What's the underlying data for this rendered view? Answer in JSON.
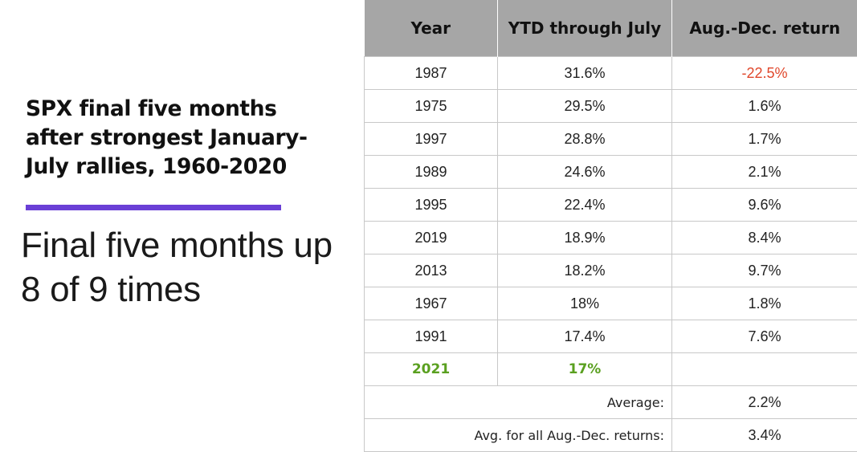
{
  "title": "SPX final five months after strongest January-July rallies, 1960-2020",
  "headline": "Final five months up 8 of 9 times",
  "colors": {
    "accent_bar": "#6a3fd6",
    "header_bg": "#a6a6a6",
    "negative": "#e0472b",
    "highlight": "#5aa020",
    "grid": "#c8c8c8"
  },
  "chart_data": {
    "type": "table",
    "columns": [
      "Year",
      "YTD through July",
      "Aug.-Dec. return"
    ],
    "rows": [
      {
        "year": "1987",
        "ytd": "31.6%",
        "aug_dec": "-22.5%",
        "negative": true
      },
      {
        "year": "1975",
        "ytd": "29.5%",
        "aug_dec": "1.6%"
      },
      {
        "year": "1997",
        "ytd": "28.8%",
        "aug_dec": "1.7%"
      },
      {
        "year": "1989",
        "ytd": "24.6%",
        "aug_dec": "2.1%"
      },
      {
        "year": "1995",
        "ytd": "22.4%",
        "aug_dec": "9.6%"
      },
      {
        "year": "2019",
        "ytd": "18.9%",
        "aug_dec": "8.4%"
      },
      {
        "year": "2013",
        "ytd": "18.2%",
        "aug_dec": "9.7%"
      },
      {
        "year": "1967",
        "ytd": "18%",
        "aug_dec": "1.8%"
      },
      {
        "year": "1991",
        "ytd": "17.4%",
        "aug_dec": "7.6%"
      },
      {
        "year": "2021",
        "ytd": "17%",
        "aug_dec": "",
        "highlight": true
      }
    ],
    "summary": [
      {
        "label": "Average:",
        "value": "2.2%"
      },
      {
        "label": "Avg. for all Aug.-Dec. returns:",
        "value": "3.4%"
      }
    ]
  }
}
